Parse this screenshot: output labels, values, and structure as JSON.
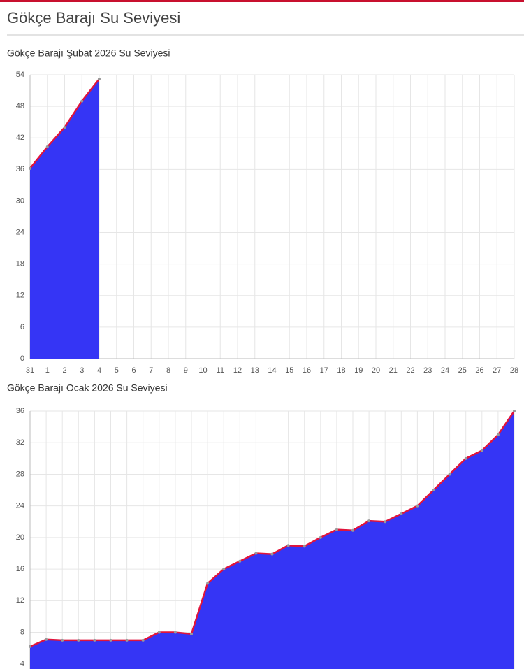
{
  "header": {
    "title": "Gökçe Barajı Su Seviyesi"
  },
  "chart_data": [
    {
      "type": "area",
      "title": "Gökçe Barajı Şubat 2026 Su Seviyesi",
      "categories": [
        "31",
        "1",
        "2",
        "3",
        "4",
        "5",
        "6",
        "7",
        "8",
        "9",
        "10",
        "11",
        "12",
        "13",
        "14",
        "15",
        "16",
        "17",
        "18",
        "19",
        "20",
        "21",
        "22",
        "23",
        "24",
        "25",
        "26",
        "27",
        "28"
      ],
      "values": [
        36.2,
        40.3,
        44,
        49,
        53.2,
        null,
        null,
        null,
        null,
        null,
        null,
        null,
        null,
        null,
        null,
        null,
        null,
        null,
        null,
        null,
        null,
        null,
        null,
        null,
        null,
        null,
        null,
        null,
        null
      ],
      "color": "#3535f5",
      "line_color": "#e0143c",
      "ylim": [
        0,
        54
      ],
      "yticks": [
        0,
        6,
        12,
        18,
        24,
        30,
        36,
        42,
        48,
        54
      ],
      "grid": true
    },
    {
      "type": "area",
      "title": "Gökçe Barajı Ocak 2026 Su Seviyesi",
      "values": [
        6.2,
        7.1,
        7,
        7,
        7,
        7,
        7,
        7,
        8,
        8,
        7.8,
        14.2,
        16,
        17,
        18,
        17.9,
        19,
        18.9,
        20,
        21,
        20.9,
        22.1,
        22,
        23,
        24,
        26,
        28,
        30,
        31,
        33,
        36
      ],
      "color": "#3535f5",
      "line_color": "#e0143c",
      "ylim": [
        0,
        36
      ],
      "yticks": [
        4,
        8,
        12,
        16,
        20,
        24,
        28,
        32,
        36
      ],
      "grid": true
    }
  ]
}
